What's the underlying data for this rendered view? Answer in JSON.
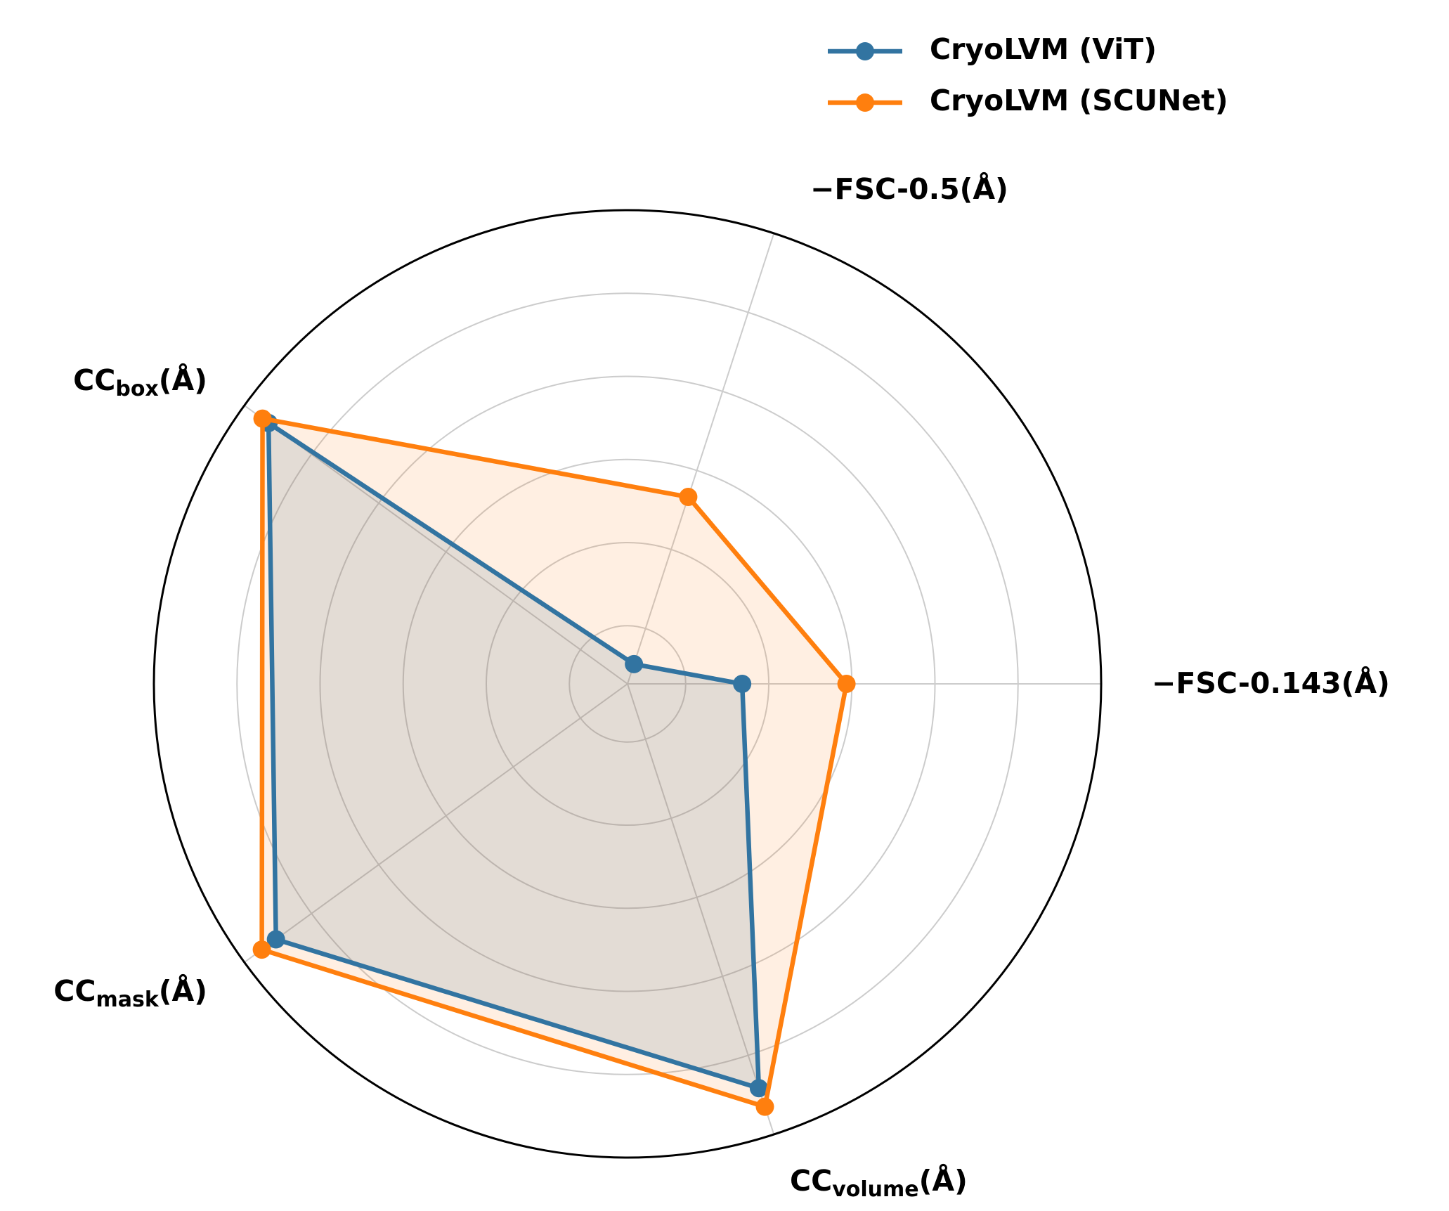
{
  "chart_data": {
    "type": "radar",
    "categories": [
      [
        "−FSC-0.143(Å)"
      ],
      [
        "−FSC-0.5(Å)"
      ],
      [
        "CC",
        "box",
        "(Å)"
      ],
      [
        "CC",
        "mask",
        "(Å)"
      ],
      [
        "CC",
        "volume",
        "(Å)"
      ]
    ],
    "series": [
      {
        "name": "CryoLVM (ViT)",
        "color": "#3274a1",
        "values": [
          0.136,
          -0.09,
          0.928,
          0.906,
          0.883
        ]
      },
      {
        "name": "CryoLVM (SCUNet)",
        "color": "#ff7f0e",
        "values": [
          0.387,
          0.333,
          0.946,
          0.948,
          0.93
        ]
      }
    ],
    "ylim": [
      -0.14,
      1.0
    ],
    "yticks": [
      0,
      0.2,
      0.4,
      0.6,
      0.8
    ],
    "grid": true,
    "legend": "upper right"
  }
}
